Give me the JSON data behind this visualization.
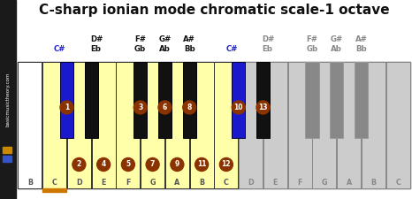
{
  "title": "C-sharp ionian mode chromatic scale-1 octave",
  "title_fontsize": 11,
  "background_color": "#ffffff",
  "sidebar_color": "#1a1a1a",
  "highlight_yellow": "#ffffaa",
  "black_key_blue_color": "#1a1acc",
  "circle_color": "#8B3300",
  "circle_text_color": "#ffffff",
  "gray_white_key": "#cccccc",
  "gray_black_key": "#888888",
  "orange_underline_color": "#cc7700",
  "csharp_label_color": "#2222cc",
  "white_keys": [
    "B",
    "C",
    "D",
    "E",
    "F",
    "G",
    "A",
    "B",
    "C",
    "D",
    "E",
    "F",
    "G",
    "A",
    "B",
    "C"
  ],
  "white_highlighted": [
    false,
    true,
    true,
    true,
    true,
    true,
    true,
    true,
    true,
    false,
    false,
    false,
    false,
    false,
    false,
    false
  ],
  "white_numbers": [
    null,
    null,
    2,
    4,
    5,
    7,
    9,
    11,
    12,
    null,
    null,
    null,
    null,
    null,
    null,
    null
  ],
  "bk_between": [
    1,
    2,
    4,
    5,
    6,
    8,
    9,
    11,
    12,
    13
  ],
  "bk_blue": [
    true,
    false,
    false,
    false,
    false,
    true,
    false,
    false,
    false,
    false
  ],
  "bk_black": [
    false,
    true,
    false,
    false,
    false,
    false,
    true,
    false,
    false,
    false
  ],
  "bk_gray": [
    false,
    false,
    false,
    false,
    false,
    false,
    false,
    true,
    true,
    true
  ],
  "bk_numbers": [
    1,
    null,
    3,
    6,
    8,
    10,
    13,
    null,
    null,
    null
  ],
  "label_row1": [
    "",
    "D#",
    "",
    "F#",
    "G#",
    "A#",
    "",
    "D#",
    "",
    "F#",
    "G#",
    "A#"
  ],
  "label_row2": [
    "C#",
    "Eb",
    "",
    "Gb",
    "Ab",
    "Bb",
    "C#",
    "Eb",
    "",
    "Gb",
    "Ab",
    "Bb"
  ]
}
